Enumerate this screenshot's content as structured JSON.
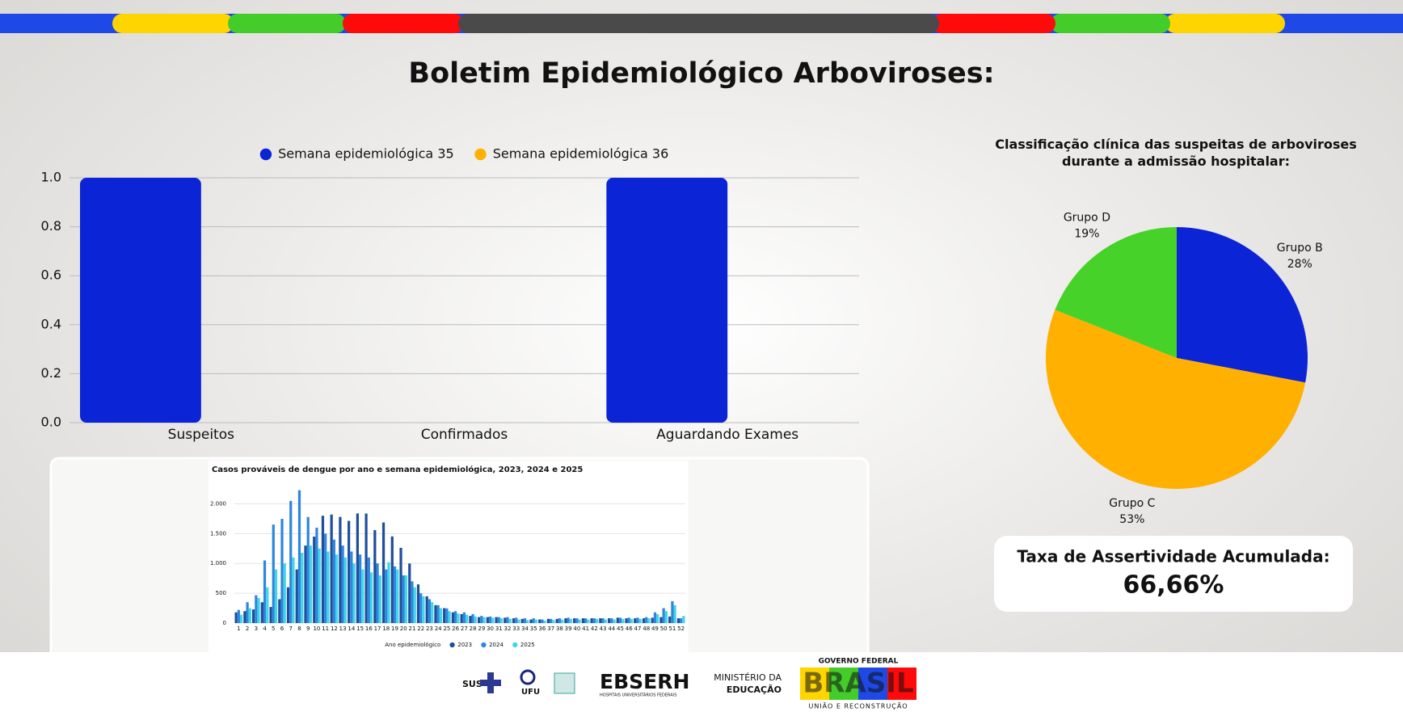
{
  "header": {
    "title": "Boletim Epidemiológico Arboviroses:"
  },
  "chart_data": [
    {
      "type": "bar",
      "categories": [
        "Suspeitos",
        "Confirmados",
        "Aguardando Exames"
      ],
      "series": [
        {
          "name": "Semana epidemiológica 35",
          "color": "#0b24d6",
          "values": [
            1,
            0,
            1
          ]
        },
        {
          "name": "Semana epidemiológica 36",
          "color": "#ffb000",
          "values": [
            0,
            0,
            0
          ]
        }
      ],
      "ylim": [
        0,
        1
      ],
      "yticks": [
        {
          "value": 0,
          "label": "0.0"
        },
        {
          "value": 0.2,
          "label": "0.2"
        },
        {
          "value": 0.4,
          "label": "0.4"
        },
        {
          "value": 0.6,
          "label": "0.6"
        },
        {
          "value": 0.8,
          "label": "0.8"
        },
        {
          "value": 1,
          "label": "1.0"
        }
      ],
      "grid": true,
      "legend": "top"
    },
    {
      "type": "pie",
      "title": "Classificação clínica das suspeitas de arboviroses durante a admissão hospitalar:",
      "categories": [
        "Grupo B",
        "Grupo C",
        "Grupo D"
      ],
      "values": [
        28,
        53,
        19
      ],
      "value_labels": [
        "28%",
        "53%",
        "19%"
      ],
      "colors": [
        "#0b24d6",
        "#ffb000",
        "#47d22a"
      ]
    },
    {
      "type": "bar",
      "title": "Casos prováveis de dengue por ano e semana epidemiológica, 2023, 2024 e 2025",
      "x_label": "Ano epidemiológico",
      "categories": [
        "1",
        "2",
        "3",
        "4",
        "5",
        "6",
        "7",
        "8",
        "9",
        "10",
        "11",
        "12",
        "13",
        "14",
        "15",
        "16",
        "17",
        "18",
        "19",
        "20",
        "21",
        "22",
        "23",
        "24",
        "25",
        "26",
        "27",
        "28",
        "29",
        "30",
        "31",
        "32",
        "33",
        "34",
        "35",
        "36",
        "37",
        "38",
        "39",
        "40",
        "41",
        "42",
        "43",
        "44",
        "45",
        "46",
        "47",
        "48",
        "49",
        "50",
        "51",
        "52"
      ],
      "series": [
        {
          "name": "2023",
          "color": "#1f4e9c",
          "values": [
            180,
            200,
            230,
            350,
            270,
            400,
            600,
            900,
            1300,
            1450,
            1800,
            1820,
            1780,
            1714,
            1839,
            1837,
            1559,
            1687,
            1453,
            1262,
            999,
            649,
            449,
            300,
            250,
            180,
            150,
            120,
            100,
            100,
            100,
            90,
            80,
            70,
            60,
            60,
            70,
            70,
            80,
            80,
            80,
            80,
            80,
            80,
            90,
            80,
            80,
            80,
            90,
            100,
            110,
            80
          ]
        },
        {
          "name": "2024",
          "color": "#2f86de",
          "values": [
            220,
            350,
            467,
            1050,
            1652,
            1748,
            2049,
            2228,
            1779,
            1600,
            1500,
            1400,
            1300,
            1200,
            1150,
            1100,
            1000,
            900,
            950,
            800,
            700,
            500,
            400,
            300,
            246,
            200,
            180,
            150,
            120,
            110,
            100,
            100,
            90,
            80,
            80,
            60,
            70,
            80,
            90,
            80,
            80,
            80,
            80,
            80,
            90,
            90,
            90,
            100,
            180,
            250,
            367,
            80
          ]
        },
        {
          "name": "2025",
          "color": "#3fd6e8",
          "values": [
            140,
            250,
            420,
            600,
            900,
            1000,
            1100,
            1179,
            1300,
            1250,
            1200,
            1150,
            1100,
            1000,
            900,
            850,
            800,
            1020,
            900,
            800,
            600,
            450,
            350,
            250,
            200,
            160,
            140,
            110,
            100,
            90,
            80,
            70,
            60,
            50,
            60,
            40,
            50,
            60,
            70,
            60,
            60,
            70,
            60,
            60,
            70,
            70,
            70,
            80,
            150,
            200,
            300,
            120
          ]
        }
      ],
      "ylim": [
        0,
        2250
      ],
      "yticks": [
        0,
        500,
        {
          "value": 1000,
          "label": "1.000"
        },
        {
          "value": 1500,
          "label": "1.500"
        },
        {
          "value": 2000,
          "label": "2.000"
        }
      ],
      "grid": true,
      "legend": "bottom"
    }
  ],
  "card": {
    "label": "Taxa de Assertividade Acumulada:",
    "value": "66,66%"
  },
  "footer": {
    "sus": "SUS",
    "ufu": "UFU",
    "ebserh": "EBSERH",
    "ebserh_sub": "HOSPITAIS UNIVERSITÁRIOS FEDERAIS",
    "mec1": "MINISTÉRIO DA",
    "mec2": "EDUCAÇÃO",
    "gov": "GOVERNO FEDERAL",
    "brasil": "BRASIL",
    "slogan": "UNIÃO E RECONSTRUÇÃO"
  }
}
